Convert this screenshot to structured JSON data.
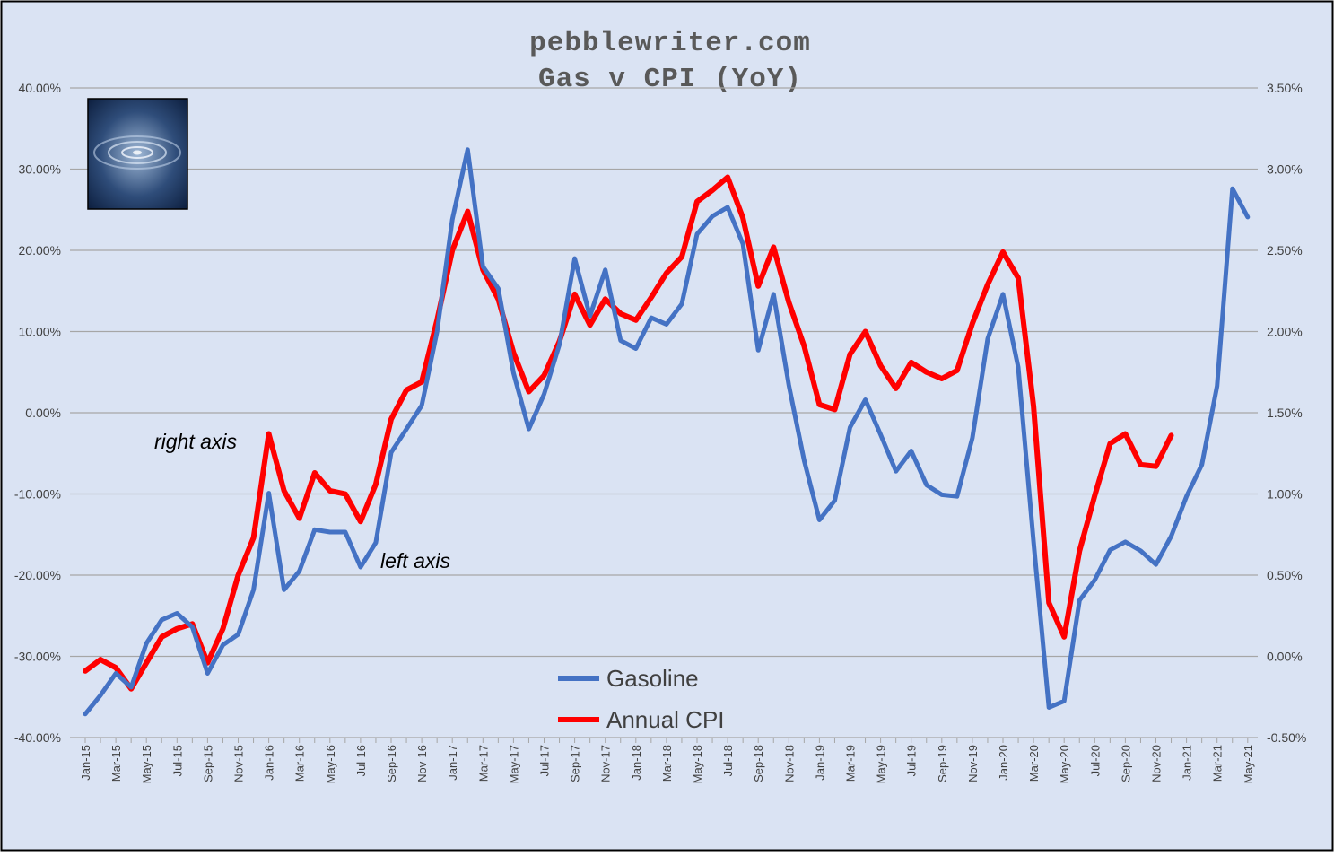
{
  "chart_data": {
    "type": "line",
    "title_line1": "pebblewriter.com",
    "title_line2": "Gas v CPI (YoY)",
    "left_axis": {
      "min": -40,
      "max": 40,
      "step": 10,
      "tick_labels": [
        "40.00%",
        "30.00%",
        "20.00%",
        "10.00%",
        "0.00%",
        "-10.00%",
        "-20.00%",
        "-30.00%",
        "-40.00%"
      ]
    },
    "right_axis": {
      "min": -0.5,
      "max": 3.5,
      "step": 0.5,
      "tick_labels": [
        "3.50%",
        "3.00%",
        "2.50%",
        "2.00%",
        "1.50%",
        "1.00%",
        "0.50%",
        "0.00%",
        "-0.50%"
      ]
    },
    "months": [
      "Jan-15",
      "Feb-15",
      "Mar-15",
      "Apr-15",
      "May-15",
      "Jun-15",
      "Jul-15",
      "Aug-15",
      "Sep-15",
      "Oct-15",
      "Nov-15",
      "Dec-15",
      "Jan-16",
      "Feb-16",
      "Mar-16",
      "Apr-16",
      "May-16",
      "Jun-16",
      "Jul-16",
      "Aug-16",
      "Sep-16",
      "Oct-16",
      "Nov-16",
      "Dec-16",
      "Jan-17",
      "Feb-17",
      "Mar-17",
      "Apr-17",
      "May-17",
      "Jun-17",
      "Jul-17",
      "Aug-17",
      "Sep-17",
      "Oct-17",
      "Nov-17",
      "Dec-17",
      "Jan-18",
      "Feb-18",
      "Mar-18",
      "Apr-18",
      "May-18",
      "Jun-18",
      "Jul-18",
      "Aug-18",
      "Sep-18",
      "Oct-18",
      "Nov-18",
      "Dec-18",
      "Jan-19",
      "Feb-19",
      "Mar-19",
      "Apr-19",
      "May-19",
      "Jun-19",
      "Jul-19",
      "Aug-19",
      "Sep-19",
      "Oct-19",
      "Nov-19",
      "Dec-19",
      "Jan-20",
      "Feb-20",
      "Mar-20",
      "Apr-20",
      "May-20",
      "Jun-20",
      "Jul-20",
      "Aug-20",
      "Sep-20",
      "Oct-20",
      "Nov-20",
      "Dec-20",
      "Jan-21",
      "Feb-21",
      "Mar-21",
      "Apr-21",
      "May-21"
    ],
    "x_tick_labels": [
      "Jan-15",
      "Mar-15",
      "May-15",
      "Jul-15",
      "Sep-15",
      "Nov-15",
      "Jan-16",
      "Mar-16",
      "May-16",
      "Jul-16",
      "Sep-16",
      "Nov-16",
      "Jan-17",
      "Mar-17",
      "May-17",
      "Jul-17",
      "Sep-17",
      "Nov-17",
      "Jan-18",
      "Mar-18",
      "May-18",
      "Jul-18",
      "Sep-18",
      "Nov-18",
      "Jan-19",
      "Mar-19",
      "May-19",
      "Jul-19",
      "Sep-19",
      "Nov-19",
      "Jan-20",
      "Mar-20",
      "May-20",
      "Jul-20",
      "Sep-20",
      "Nov-20",
      "Jan-21",
      "Mar-21",
      "May-21"
    ],
    "series": [
      {
        "name": "Gasoline",
        "axis": "left",
        "color": "#4472C4",
        "values": [
          -37.1,
          -34.8,
          -32.1,
          -33.8,
          -28.4,
          -25.5,
          -24.7,
          -26.4,
          -32.1,
          -28.6,
          -27.3,
          -21.8,
          -9.9,
          -21.8,
          -19.5,
          -14.4,
          -14.7,
          -14.7,
          -19.0,
          -16.0,
          -4.9,
          -2.0,
          0.9,
          10.0,
          23.8,
          32.4,
          18.0,
          15.3,
          4.9,
          -2.0,
          2.3,
          8.4,
          19.0,
          11.9,
          17.6,
          8.9,
          7.9,
          11.7,
          10.9,
          13.4,
          22.0,
          24.2,
          25.3,
          20.8,
          7.7,
          14.6,
          3.4,
          -5.9,
          -13.2,
          -10.8,
          -1.8,
          1.6,
          -2.7,
          -7.2,
          -4.7,
          -8.9,
          -10.1,
          -10.3,
          -3.1,
          9.1,
          14.6,
          5.6,
          -15.9,
          -36.3,
          -35.5,
          -23.1,
          -20.6,
          -16.9,
          -15.9,
          -17.0,
          -18.7,
          -15.2,
          -10.3,
          -6.4,
          3.3,
          27.6,
          24.1
        ]
      },
      {
        "name": "Annual CPI",
        "axis": "right",
        "color": "#FF0000",
        "values": [
          -0.09,
          -0.02,
          -0.07,
          -0.2,
          -0.04,
          0.12,
          0.17,
          0.2,
          -0.04,
          0.17,
          0.5,
          0.73,
          1.37,
          1.02,
          0.85,
          1.13,
          1.02,
          1.0,
          0.83,
          1.06,
          1.46,
          1.64,
          1.69,
          2.07,
          2.5,
          2.74,
          2.38,
          2.2,
          1.87,
          1.63,
          1.73,
          1.94,
          2.23,
          2.04,
          2.2,
          2.11,
          2.07,
          2.21,
          2.36,
          2.46,
          2.8,
          2.87,
          2.95,
          2.7,
          2.28,
          2.52,
          2.18,
          1.91,
          1.55,
          1.52,
          1.86,
          2.0,
          1.79,
          1.65,
          1.81,
          1.75,
          1.71,
          1.76,
          2.05,
          2.29,
          2.49,
          2.33,
          1.54,
          0.33,
          0.12,
          0.65,
          0.99,
          1.31,
          1.37,
          1.18,
          1.17,
          1.36
        ]
      }
    ],
    "annotations": [
      "right axis",
      "left axis"
    ],
    "legend": [
      "Gasoline",
      "Annual CPI"
    ],
    "grid": true
  },
  "colors": {
    "background": "#DAE3F3",
    "border": "#000000",
    "grid": "#A6A6A6",
    "text": "#404040"
  },
  "logo": {
    "icon": "water-ripple-icon"
  }
}
